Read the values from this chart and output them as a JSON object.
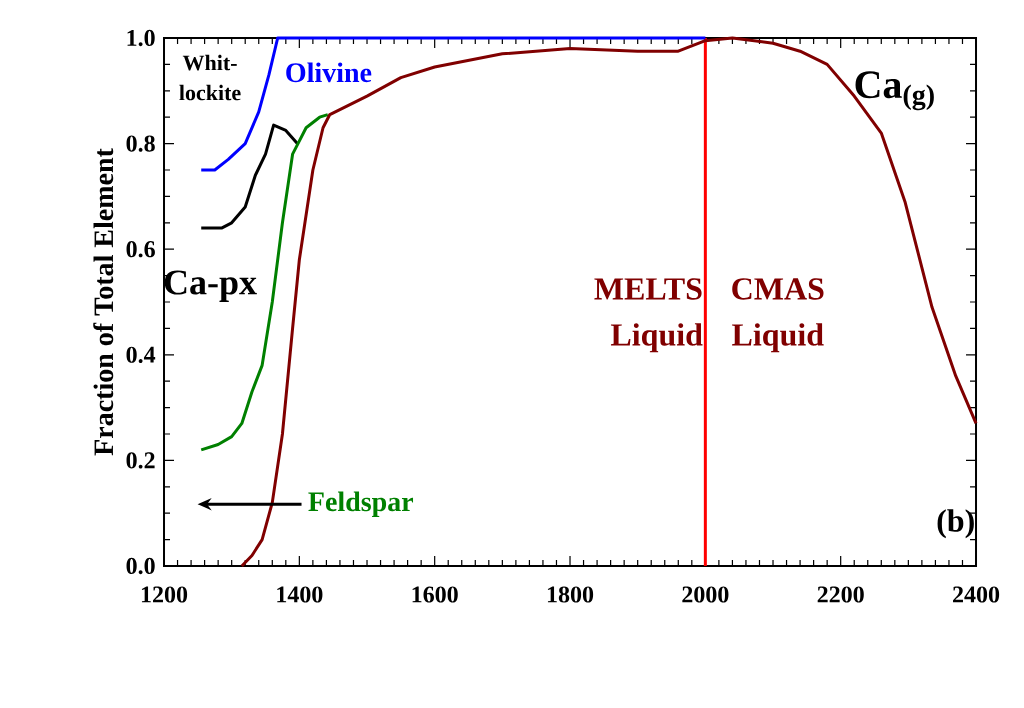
{
  "chart_data": {
    "type": "line",
    "ylabel": "Fraction of Total Element",
    "xlim": [
      1200,
      2400
    ],
    "xticks": [
      1200,
      1400,
      1600,
      1800,
      2000,
      2200,
      2400
    ],
    "ylim": [
      0,
      1
    ],
    "yticks": [
      {
        "value": 0,
        "label": "0.0"
      },
      {
        "value": 0.2,
        "label": "0.2"
      },
      {
        "value": 0.4,
        "label": "0.4"
      },
      {
        "value": 0.6,
        "label": "0.6"
      },
      {
        "value": 0.8,
        "label": "0.8"
      },
      {
        "value": 1.0,
        "label": "1.0"
      }
    ],
    "grid": false,
    "marker": "none",
    "line_style": "solid",
    "series": [
      {
        "color": "#0000ff",
        "x": [
          1255,
          1275,
          1295,
          1320,
          1340,
          1355,
          1368,
          1600,
          1800,
          2000
        ],
        "values": [
          0.75,
          0.75,
          0.77,
          0.8,
          0.86,
          0.93,
          1.0,
          1.0,
          1.0,
          1.0
        ]
      },
      {
        "color": "#000000",
        "x": [
          1255,
          1285,
          1300,
          1320,
          1335,
          1350,
          1362,
          1380,
          1397
        ],
        "values": [
          0.64,
          0.64,
          0.65,
          0.68,
          0.74,
          0.78,
          0.835,
          0.825,
          0.8
        ]
      },
      {
        "color": "#008000",
        "x": [
          1255,
          1280,
          1300,
          1315,
          1330,
          1345,
          1360,
          1375,
          1390,
          1398,
          1410,
          1430,
          1442
        ],
        "values": [
          0.22,
          0.23,
          0.245,
          0.27,
          0.33,
          0.38,
          0.5,
          0.65,
          0.78,
          0.8,
          0.83,
          0.85,
          0.855
        ]
      },
      {
        "color": "#800000",
        "x": [
          1315,
          1330,
          1345,
          1360,
          1375,
          1390,
          1400,
          1420,
          1435,
          1445,
          1500,
          1550,
          1600,
          1700,
          1800,
          1900,
          1960,
          2000,
          2040,
          2100,
          2140,
          2180,
          2220,
          2260,
          2295,
          2335,
          2370,
          2400
        ],
        "values": [
          0.0,
          0.02,
          0.05,
          0.12,
          0.25,
          0.45,
          0.58,
          0.75,
          0.83,
          0.855,
          0.89,
          0.925,
          0.945,
          0.97,
          0.98,
          0.975,
          0.975,
          0.995,
          1.0,
          0.99,
          0.975,
          0.95,
          0.89,
          0.82,
          0.69,
          0.49,
          0.36,
          0.27
        ]
      }
    ],
    "ref_lines": [
      {
        "axis": "x",
        "value": 2000,
        "color": "#ff0000"
      }
    ],
    "annotations": [
      "Whit-lockite",
      "MELTS Liquid",
      "CMAS Liquid",
      "(b)",
      "Ca$_{(g)}$",
      "Feldspar",
      "Olivine",
      "Ca-px"
    ]
  }
}
